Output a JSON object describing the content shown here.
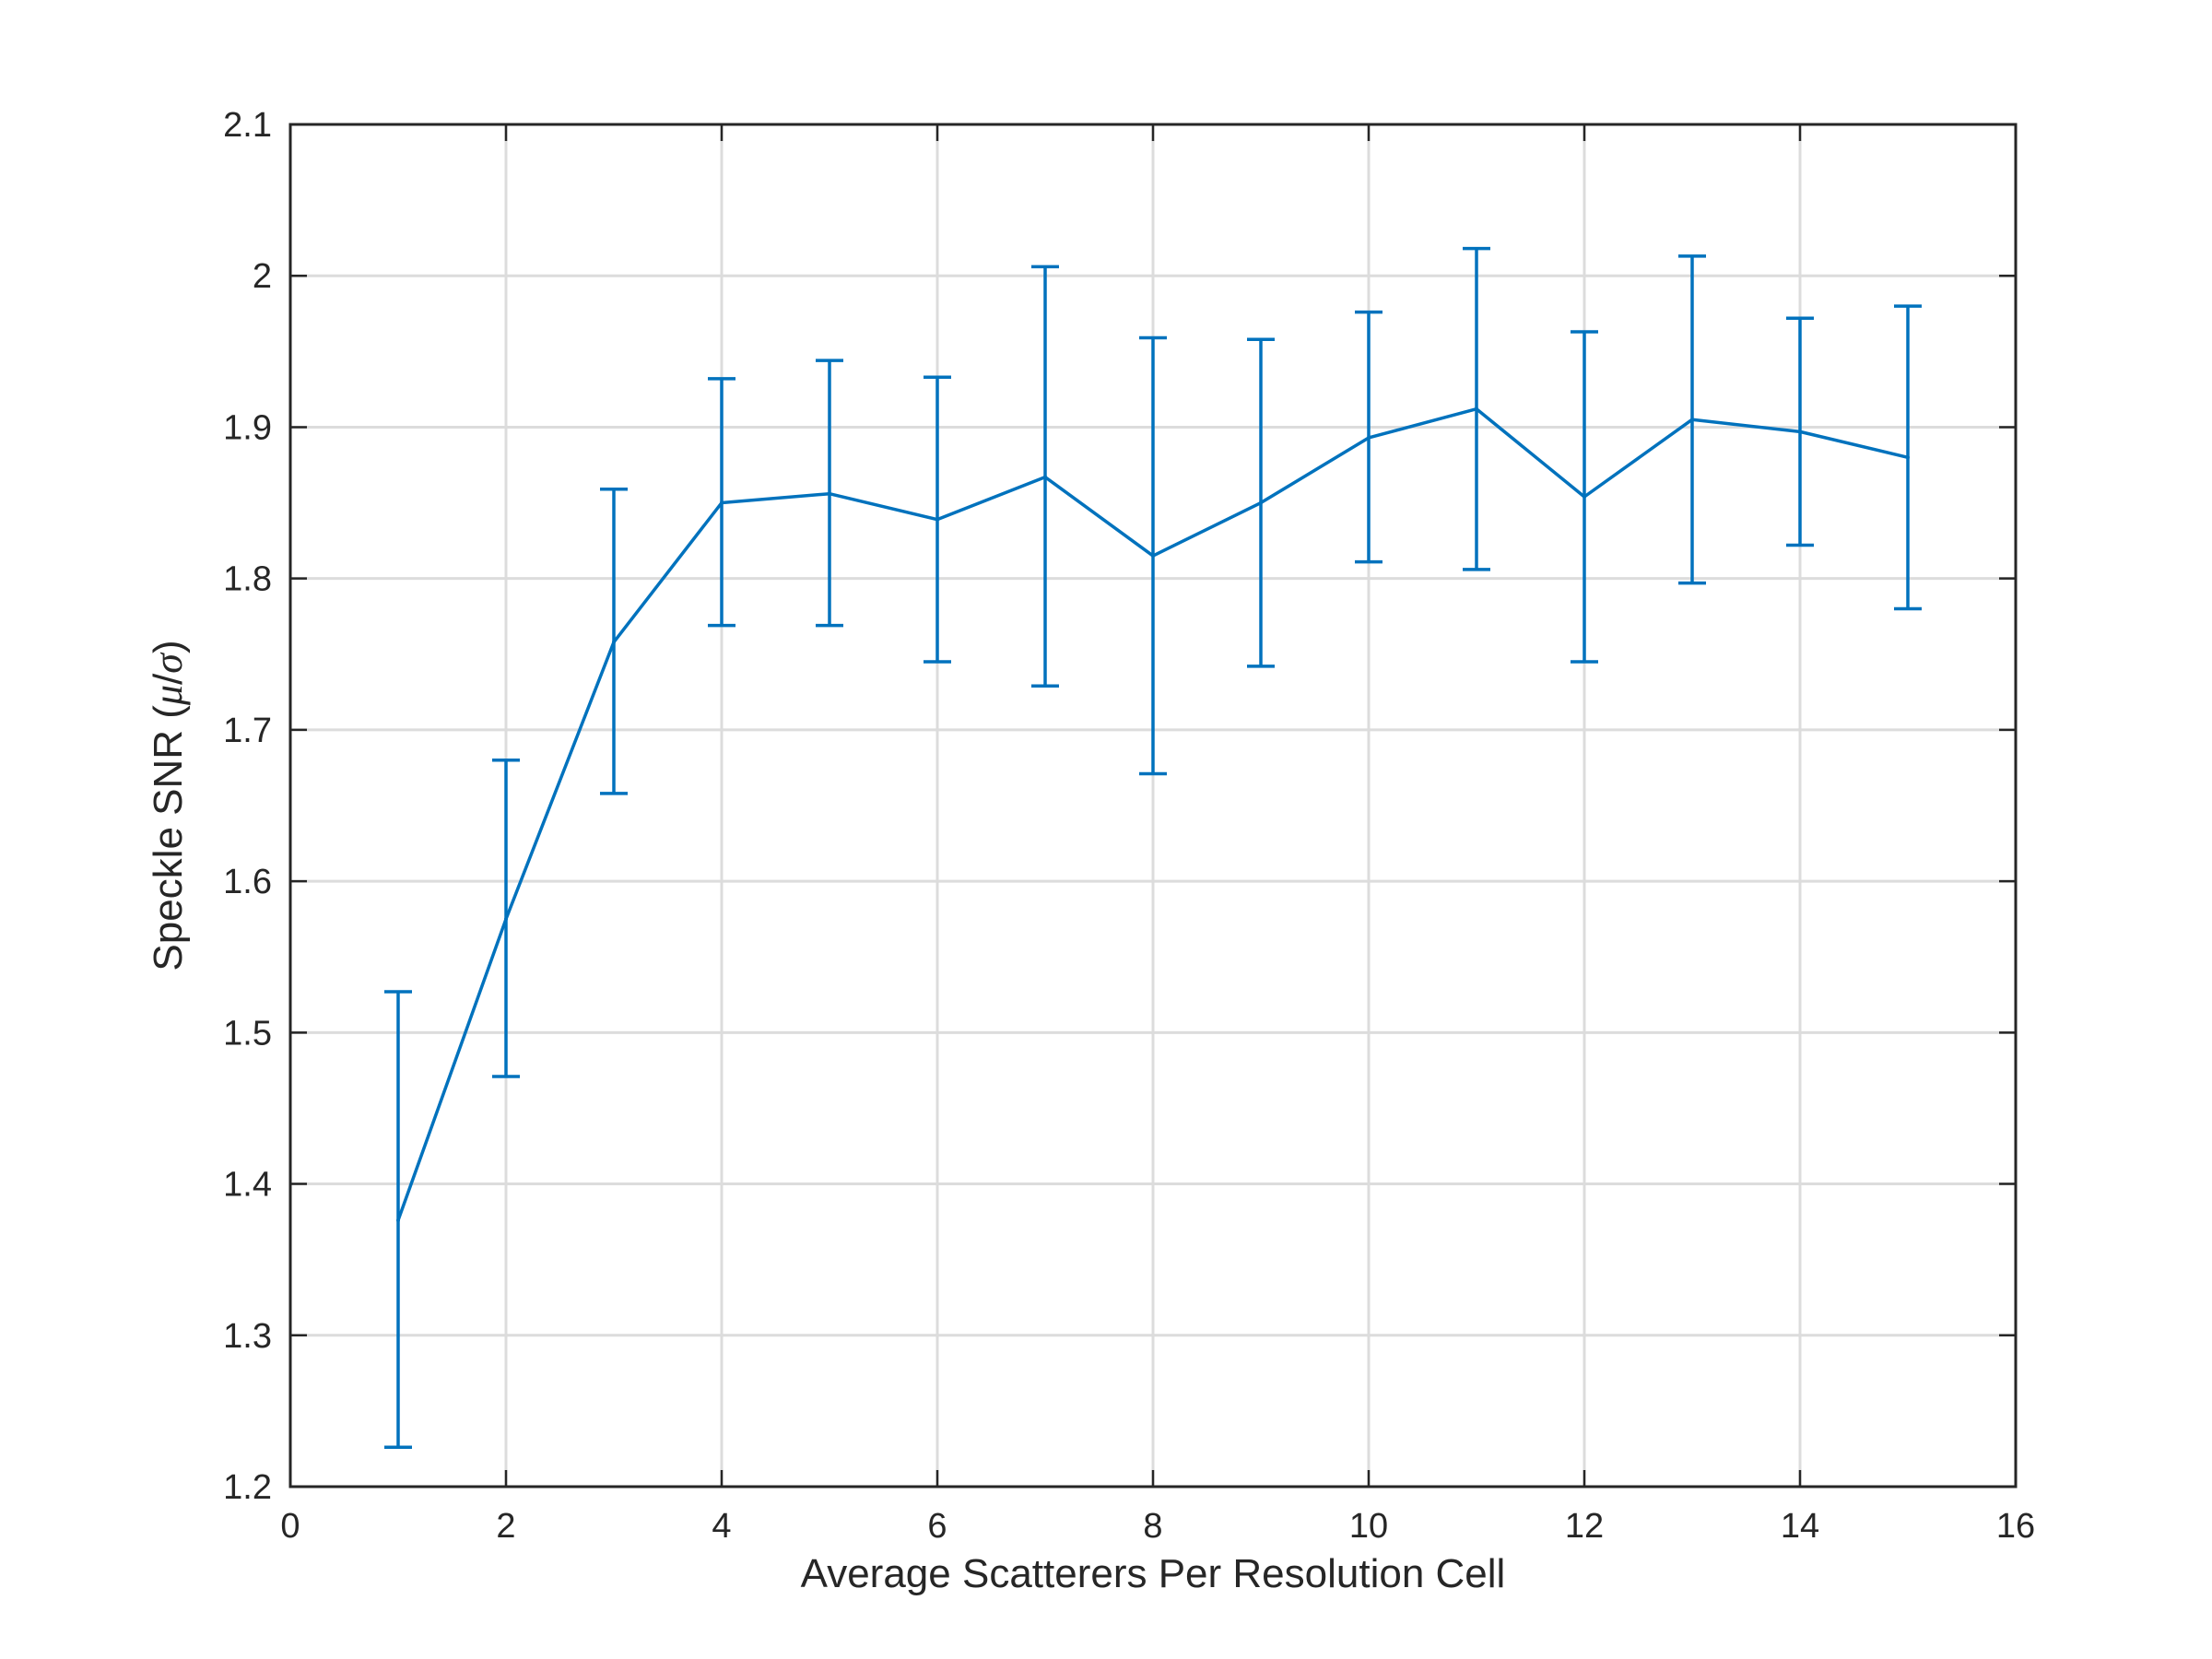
{
  "chart_data": {
    "type": "line",
    "title": "",
    "xlabel": "Average Scatterers Per Resolution Cell",
    "ylabel": {
      "prefix": "Speckle SNR (",
      "mu": "μ",
      "slash": "/",
      "sigma": "σ",
      "suffix": ")"
    },
    "xlim": [
      0,
      16
    ],
    "ylim": [
      1.2,
      2.1
    ],
    "xticks": [
      "0",
      "2",
      "4",
      "6",
      "8",
      "10",
      "12",
      "14",
      "16"
    ],
    "yticks": [
      "1.2",
      "1.3",
      "1.4",
      "1.5",
      "1.6",
      "1.7",
      "1.8",
      "1.9",
      "2",
      "2.1"
    ],
    "grid": true,
    "legend": "none",
    "series": [
      {
        "color": "#0072BD",
        "x": [
          1,
          2,
          3,
          4,
          5,
          6,
          7,
          8,
          9,
          10,
          11,
          12,
          13,
          14,
          15
        ],
        "y": [
          1.376,
          1.575,
          1.758,
          1.85,
          1.856,
          1.839,
          1.867,
          1.815,
          1.85,
          1.893,
          1.912,
          1.854,
          1.905,
          1.897,
          1.88
        ],
        "lower": [
          1.226,
          1.471,
          1.658,
          1.769,
          1.769,
          1.745,
          1.729,
          1.671,
          1.742,
          1.811,
          1.806,
          1.745,
          1.797,
          1.822,
          1.78
        ],
        "upper": [
          1.527,
          1.68,
          1.859,
          1.932,
          1.944,
          1.933,
          2.006,
          1.959,
          1.958,
          1.976,
          2.018,
          1.963,
          2.013,
          1.972,
          1.98
        ]
      }
    ]
  }
}
